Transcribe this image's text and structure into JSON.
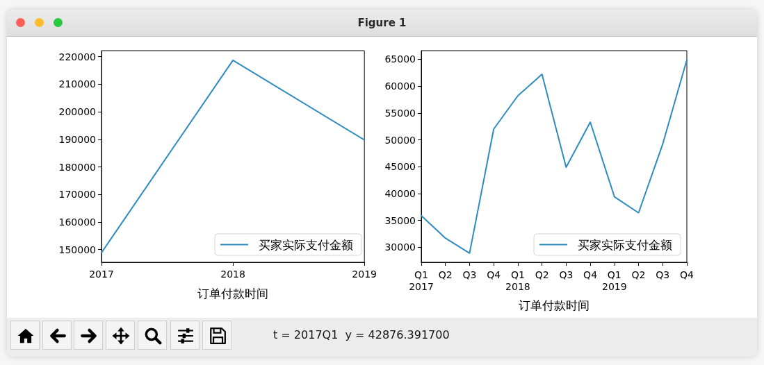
{
  "chart_data": [
    {
      "type": "line",
      "x": [
        2017,
        2018,
        2019
      ],
      "series": [
        {
          "name": "买家实际支付金额",
          "color": "#2e8bc0",
          "values": [
            148900,
            218700,
            189800
          ]
        }
      ],
      "xlabel": "订单付款时间",
      "xlim": [
        2017,
        2019
      ],
      "xticks": [
        2017,
        2018,
        2019
      ],
      "ylim": [
        145400,
        222200
      ],
      "yticks": [
        150000,
        160000,
        170000,
        180000,
        190000,
        200000,
        210000,
        220000
      ],
      "legend": "bottom right",
      "grid": false,
      "annotations": [
        "Figure 1"
      ]
    },
    {
      "type": "line",
      "categories": [
        "Q1\n2017",
        "Q2",
        "Q3",
        "Q4",
        "Q1\n2018",
        "Q2",
        "Q3",
        "Q4",
        "Q1\n2019",
        "Q2",
        "Q3",
        "Q4"
      ],
      "series": [
        {
          "name": "买家实际支付金额",
          "color": "#2e8bc0",
          "values": [
            35900,
            31700,
            28900,
            52000,
            58200,
            62200,
            44900,
            53300,
            39400,
            36400,
            49200,
            64900
          ]
        }
      ],
      "xlabel": "订单付款时间",
      "ylim": [
        27200,
        66600
      ],
      "yticks": [
        30000,
        35000,
        40000,
        45000,
        50000,
        55000,
        60000,
        65000
      ],
      "legend": "bottom right",
      "grid": false,
      "annotations": [
        "t = 2017Q1  y = 42876.391700"
      ]
    }
  ]
}
